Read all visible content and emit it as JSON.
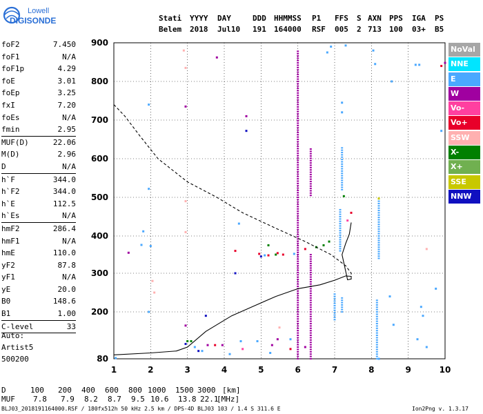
{
  "logo": {
    "line1": "Lowell",
    "line2": "DIGISONDE"
  },
  "header": {
    "labels": [
      "Stati",
      "YYYY",
      "DAY",
      "DDD",
      "HHMMSS",
      "P1",
      "FFS",
      "S",
      "AXN",
      "PPS",
      "IGA",
      "PS"
    ],
    "values": [
      "Belem",
      "2018",
      "Jul10",
      "191",
      "164000",
      "RSF",
      "005",
      "2",
      "713",
      "100",
      "03+",
      "B5"
    ]
  },
  "params": [
    {
      "label": "foF2",
      "value": "7.450"
    },
    {
      "label": "foF1",
      "value": "N/A"
    },
    {
      "label": "foF1p",
      "value": "4.29"
    },
    {
      "label": "foE",
      "value": "3.01"
    },
    {
      "label": "foEp",
      "value": "3.25"
    },
    {
      "label": "fxI",
      "value": "7.20"
    },
    {
      "label": "foEs",
      "value": "N/A"
    },
    {
      "label": "fmin",
      "value": "2.95",
      "sep": true
    },
    {
      "label": "MUF(D)",
      "value": "22.06"
    },
    {
      "label": "M(D)",
      "value": "2.96"
    },
    {
      "label": "D",
      "value": "N/A",
      "sep": true
    },
    {
      "label": "h`F",
      "value": "344.0"
    },
    {
      "label": "h`F2",
      "value": "344.0"
    },
    {
      "label": "h`E",
      "value": "112.5"
    },
    {
      "label": "h`Es",
      "value": "N/A",
      "sep": true
    },
    {
      "label": "hmF2",
      "value": "286.4"
    },
    {
      "label": "hmF1",
      "value": "N/A"
    },
    {
      "label": "hmE",
      "value": "110.0"
    },
    {
      "label": "yF2",
      "value": "87.8"
    },
    {
      "label": "yF1",
      "value": "N/A"
    },
    {
      "label": "yE",
      "value": "20.0"
    },
    {
      "label": "B0",
      "value": "148.6"
    },
    {
      "label": "B1",
      "value": "1.00",
      "sep": true
    },
    {
      "label": "C-level",
      "value": "33",
      "sep": true
    }
  ],
  "auto": [
    "Auto:",
    "Artist5",
    "500200"
  ],
  "legend": [
    {
      "label": "NoVal",
      "color": "#a6a6a6"
    },
    {
      "label": "NNE",
      "color": "#00e5ff"
    },
    {
      "label": "E",
      "color": "#4aa8ff"
    },
    {
      "label": "W",
      "color": "#a000a0"
    },
    {
      "label": "Vo-",
      "color": "#ff40a0"
    },
    {
      "label": "Vo+",
      "color": "#e8002a"
    },
    {
      "label": "SSW",
      "color": "#ffb0b0"
    },
    {
      "label": "X-",
      "color": "#008000"
    },
    {
      "label": "X+",
      "color": "#70b050"
    },
    {
      "label": "SSE",
      "color": "#c8c800"
    },
    {
      "label": "NNW",
      "color": "#1010c0"
    }
  ],
  "bottom_table": {
    "d_label": "D",
    "d_values": [
      "100",
      "200",
      "400",
      "600",
      "800",
      "1000",
      "1500",
      "3000"
    ],
    "d_unit": "[km]",
    "muf_label": "MUF",
    "muf_values": [
      "7.8",
      "7.9",
      "8.2",
      "8.7",
      "9.5",
      "10.6",
      "13.8",
      "22.1"
    ],
    "muf_unit": "[MHz]"
  },
  "footer": {
    "left": "BLJ03_2018191164000.RSF / 180fx512h 50 kHz 2.5 km / DPS-4D BLJ03 103 / 1.4 S 311.6 E",
    "right": "Ion2Png v. 1.3.17"
  },
  "chart_data": {
    "type": "scatter",
    "x_ticks": [
      "1",
      "2",
      "3",
      "4",
      "5",
      "6",
      "7",
      "8",
      "9",
      "10"
    ],
    "y_ticks": [
      "80",
      "200",
      "300",
      "400",
      "500",
      "600",
      "700",
      "800",
      "900"
    ],
    "xlim": [
      1,
      10
    ],
    "ylim": [
      80,
      900
    ],
    "y_axis_scale": "nonlinear (virtual height, km)",
    "grid": "dotted",
    "legend_placement": "right",
    "series": [
      {
        "name": "",
        "kind": "solid-profile",
        "color": "#000000",
        "values": [
          [
            1.0,
            90
          ],
          [
            2.0,
            95
          ],
          [
            2.7,
            100
          ],
          [
            3.0,
            110
          ],
          [
            3.5,
            150
          ],
          [
            4.2,
            190
          ],
          [
            4.8,
            215
          ],
          [
            5.4,
            240
          ],
          [
            6.0,
            260
          ],
          [
            6.6,
            270
          ],
          [
            7.0,
            282
          ],
          [
            7.3,
            293
          ],
          [
            7.45,
            292
          ],
          [
            7.45,
            285
          ],
          [
            7.35,
            283
          ],
          [
            7.2,
            350
          ],
          [
            7.3,
            380
          ],
          [
            7.4,
            405
          ],
          [
            7.45,
            435
          ]
        ]
      },
      {
        "name": "",
        "kind": "dashed-profile",
        "color": "#000000",
        "values": [
          [
            1.0,
            740
          ],
          [
            1.3,
            710
          ],
          [
            1.7,
            660
          ],
          [
            2.2,
            600
          ],
          [
            3.0,
            540
          ],
          [
            3.8,
            500
          ],
          [
            4.5,
            460
          ],
          [
            5.4,
            420
          ],
          [
            6.2,
            385
          ],
          [
            6.9,
            350
          ],
          [
            7.3,
            320
          ],
          [
            7.45,
            300
          ],
          [
            7.45,
            292
          ]
        ]
      }
    ],
    "traces": [
      {
        "color": "#a000a0",
        "x": 6.0,
        "y1": 80,
        "y2": 880
      },
      {
        "color": "#a000a0",
        "x": 6.35,
        "y1": 80,
        "y2": 355
      },
      {
        "color": "#a000a0",
        "x": 6.35,
        "y1": 505,
        "y2": 625
      },
      {
        "color": "#4aa8ff",
        "x": 7.2,
        "y1": 520,
        "y2": 630
      },
      {
        "color": "#4aa8ff",
        "x": 7.15,
        "y1": 360,
        "y2": 470
      },
      {
        "color": "#4aa8ff",
        "x": 8.2,
        "y1": 340,
        "y2": 500
      },
      {
        "color": "#4aa8ff",
        "x": 7.0,
        "y1": 180,
        "y2": 250
      },
      {
        "color": "#4aa8ff",
        "x": 8.15,
        "y1": 80,
        "y2": 230
      },
      {
        "color": "#4aa8ff",
        "x": 7.2,
        "y1": 200,
        "y2": 240
      }
    ],
    "points": [
      {
        "x": 1.95,
        "y": 740,
        "color": "#4aa8ff"
      },
      {
        "x": 1.95,
        "y": 522,
        "color": "#4aa8ff"
      },
      {
        "x": 1.8,
        "y": 412,
        "color": "#4aa8ff"
      },
      {
        "x": 1.75,
        "y": 376,
        "color": "#4aa8ff"
      },
      {
        "x": 2.0,
        "y": 373,
        "color": "#4aa8ff"
      },
      {
        "x": 1.95,
        "y": 200,
        "color": "#4aa8ff"
      },
      {
        "x": 2.05,
        "y": 280,
        "color": "#ffb0b0"
      },
      {
        "x": 2.1,
        "y": 250,
        "color": "#ffb0b0"
      },
      {
        "x": 2.9,
        "y": 880,
        "color": "#ffb0b0"
      },
      {
        "x": 2.95,
        "y": 835,
        "color": "#ffb0b0"
      },
      {
        "x": 2.95,
        "y": 735,
        "color": "#a000a0"
      },
      {
        "x": 3.8,
        "y": 862,
        "color": "#a000a0"
      },
      {
        "x": 2.95,
        "y": 490,
        "color": "#ffb0b0"
      },
      {
        "x": 2.95,
        "y": 410,
        "color": "#ffb0b0"
      },
      {
        "x": 2.95,
        "y": 165,
        "color": "#a000a0"
      },
      {
        "x": 3.5,
        "y": 190,
        "color": "#1010c0"
      },
      {
        "x": 4.6,
        "y": 672,
        "color": "#1010c0"
      },
      {
        "x": 4.4,
        "y": 432,
        "color": "#4aa8ff"
      },
      {
        "x": 4.3,
        "y": 360,
        "color": "#e8002a"
      },
      {
        "x": 4.3,
        "y": 300,
        "color": "#1010c0"
      },
      {
        "x": 4.6,
        "y": 710,
        "color": "#a000a0"
      },
      {
        "x": 1.4,
        "y": 355,
        "color": "#a000a0"
      },
      {
        "x": 6.9,
        "y": 890,
        "color": "#4aa8ff"
      },
      {
        "x": 7.3,
        "y": 893,
        "color": "#4aa8ff"
      },
      {
        "x": 6.8,
        "y": 875,
        "color": "#4aa8ff"
      },
      {
        "x": 7.2,
        "y": 720,
        "color": "#4aa8ff"
      },
      {
        "x": 7.2,
        "y": 745,
        "color": "#4aa8ff"
      },
      {
        "x": 8.05,
        "y": 880,
        "color": "#4aa8ff"
      },
      {
        "x": 8.1,
        "y": 845,
        "color": "#4aa8ff"
      },
      {
        "x": 9.2,
        "y": 843,
        "color": "#4aa8ff"
      },
      {
        "x": 9.3,
        "y": 843,
        "color": "#4aa8ff"
      },
      {
        "x": 9.9,
        "y": 840,
        "color": "#e8002a"
      },
      {
        "x": 10.0,
        "y": 848,
        "color": "#a000a0"
      },
      {
        "x": 8.55,
        "y": 800,
        "color": "#4aa8ff"
      },
      {
        "x": 9.9,
        "y": 672,
        "color": "#4aa8ff"
      },
      {
        "x": 8.2,
        "y": 497,
        "color": "#c8c800"
      },
      {
        "x": 7.25,
        "y": 503,
        "color": "#008000"
      },
      {
        "x": 9.5,
        "y": 365,
        "color": "#ffb0b0"
      },
      {
        "x": 9.75,
        "y": 260,
        "color": "#4aa8ff"
      },
      {
        "x": 8.5,
        "y": 240,
        "color": "#4aa8ff"
      },
      {
        "x": 9.35,
        "y": 213,
        "color": "#4aa8ff"
      },
      {
        "x": 9.4,
        "y": 190,
        "color": "#4aa8ff"
      },
      {
        "x": 8.6,
        "y": 167,
        "color": "#4aa8ff"
      },
      {
        "x": 9.25,
        "y": 130,
        "color": "#4aa8ff"
      },
      {
        "x": 9.5,
        "y": 110,
        "color": "#4aa8ff"
      },
      {
        "x": 8.2,
        "y": 80,
        "color": "#4aa8ff"
      },
      {
        "x": 1.05,
        "y": 82,
        "color": "#4aa8ff"
      },
      {
        "x": 3.4,
        "y": 100,
        "color": "#4aa8ff"
      },
      {
        "x": 3.2,
        "y": 110,
        "color": "#4aa8ff"
      },
      {
        "x": 3.3,
        "y": 100,
        "color": "#1010c0"
      },
      {
        "x": 3.55,
        "y": 115,
        "color": "#a000a0"
      },
      {
        "x": 3.75,
        "y": 115,
        "color": "#e8002a"
      },
      {
        "x": 3.95,
        "y": 115,
        "color": "#a000a0"
      },
      {
        "x": 4.15,
        "y": 92,
        "color": "#4aa8ff"
      },
      {
        "x": 4.45,
        "y": 125,
        "color": "#4aa8ff"
      },
      {
        "x": 4.5,
        "y": 105,
        "color": "#ff40a0"
      },
      {
        "x": 4.9,
        "y": 125,
        "color": "#4aa8ff"
      },
      {
        "x": 5.3,
        "y": 115,
        "color": "#a000a0"
      },
      {
        "x": 5.25,
        "y": 95,
        "color": "#4aa8ff"
      },
      {
        "x": 5.45,
        "y": 130,
        "color": "#a000a0"
      },
      {
        "x": 5.5,
        "y": 160,
        "color": "#ffb0b0"
      },
      {
        "x": 5.8,
        "y": 130,
        "color": "#4aa8ff"
      },
      {
        "x": 5.8,
        "y": 105,
        "color": "#e8002a"
      },
      {
        "x": 6.2,
        "y": 110,
        "color": "#a000a0"
      },
      {
        "x": 4.95,
        "y": 352,
        "color": "#e8002a"
      },
      {
        "x": 5.2,
        "y": 348,
        "color": "#e8002a"
      },
      {
        "x": 5.45,
        "y": 354,
        "color": "#e8002a"
      },
      {
        "x": 5.6,
        "y": 350,
        "color": "#e8002a"
      },
      {
        "x": 5.2,
        "y": 375,
        "color": "#008000"
      },
      {
        "x": 5.4,
        "y": 350,
        "color": "#008000"
      },
      {
        "x": 6.5,
        "y": 370,
        "color": "#008000"
      },
      {
        "x": 6.7,
        "y": 375,
        "color": "#008000"
      },
      {
        "x": 6.85,
        "y": 385,
        "color": "#008000"
      },
      {
        "x": 6.2,
        "y": 365,
        "color": "#e8002a"
      },
      {
        "x": 7.45,
        "y": 460,
        "color": "#e8002a"
      },
      {
        "x": 7.35,
        "y": 440,
        "color": "#ff40a0"
      },
      {
        "x": 5.9,
        "y": 352,
        "color": "#4aa8ff"
      },
      {
        "x": 5.0,
        "y": 345,
        "color": "#1010c0"
      },
      {
        "x": 5.1,
        "y": 348,
        "color": "#4aa8ff"
      },
      {
        "x": 3.0,
        "y": 125,
        "color": "#008000"
      },
      {
        "x": 2.95,
        "y": 118,
        "color": "#1010c0"
      },
      {
        "x": 3.1,
        "y": 125,
        "color": "#008000"
      }
    ]
  }
}
